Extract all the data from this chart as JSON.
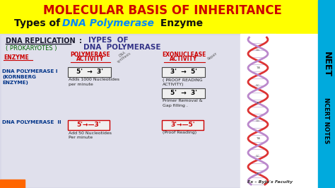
{
  "bg_full_color": "#FFFF00",
  "bg_white_color": "#E8E8EE",
  "bg_cyan_color": "#00AADD",
  "title_top": "MOLECULAR BASIS OF INHERITANCE",
  "title_top_color": "#CC0000",
  "subtitle_prefix": "Types of ",
  "subtitle_dna": "DNA Polymerase",
  "subtitle_suffix": " Enzyme",
  "subtitle_color_normal": "#111111",
  "subtitle_color_dna": "#0088FF",
  "wb_heading1": "DNA REPLICATION",
  "wb_heading2": "( PROKARYOTES )",
  "wb_colon": ":",
  "wb_heading3": "IYPES  OF",
  "wb_heading4": "DNA  POLYMERASE",
  "col_enzyme": "ENZYME",
  "col_poly1": "POLYMERASE",
  "col_poly2": "ACTIVITY",
  "col_exo1": "EXONUCLEASE",
  "col_exo2": "ACTIVITY",
  "annot_synthesis": "DNA\nsynthesis",
  "annot_repair": "Repair",
  "enzyme1_line1": "DNA POLYMERASE I",
  "enzyme1_line2": "(KORNBERG",
  "enzyme1_line3": "ENZYME)",
  "enzyme1_poly": "5'  →  3'",
  "enzyme1_poly_desc1": "Adds 1000 Nucleotides",
  "enzyme1_poly_desc2": "per minute",
  "enzyme1_exo1": "3'  →  5'",
  "enzyme1_exo1_desc1": "( PROOF READING",
  "enzyme1_exo1_desc2": "ACTIVITY)",
  "enzyme1_exo2": "5'  →  3'",
  "enzyme1_exo2_desc1": "Primer Removal &",
  "enzyme1_exo2_desc2": "Gap filling .",
  "enzyme2_line1": "DNA POLYMERASE  II",
  "enzyme2_poly": "5'→—3'",
  "enzyme2_poly_desc1": "Add 50 Nucleotides",
  "enzyme2_poly_desc2": "Per minute",
  "enzyme2_exo": "3'→—5'",
  "enzyme2_exo_desc": "(Proof Reading)",
  "neet_line1": "NEET",
  "neet_line2": "NCERT NOTES",
  "byju_text": "Ex – Byju's Faculty",
  "orange_bar": "#FF6600"
}
